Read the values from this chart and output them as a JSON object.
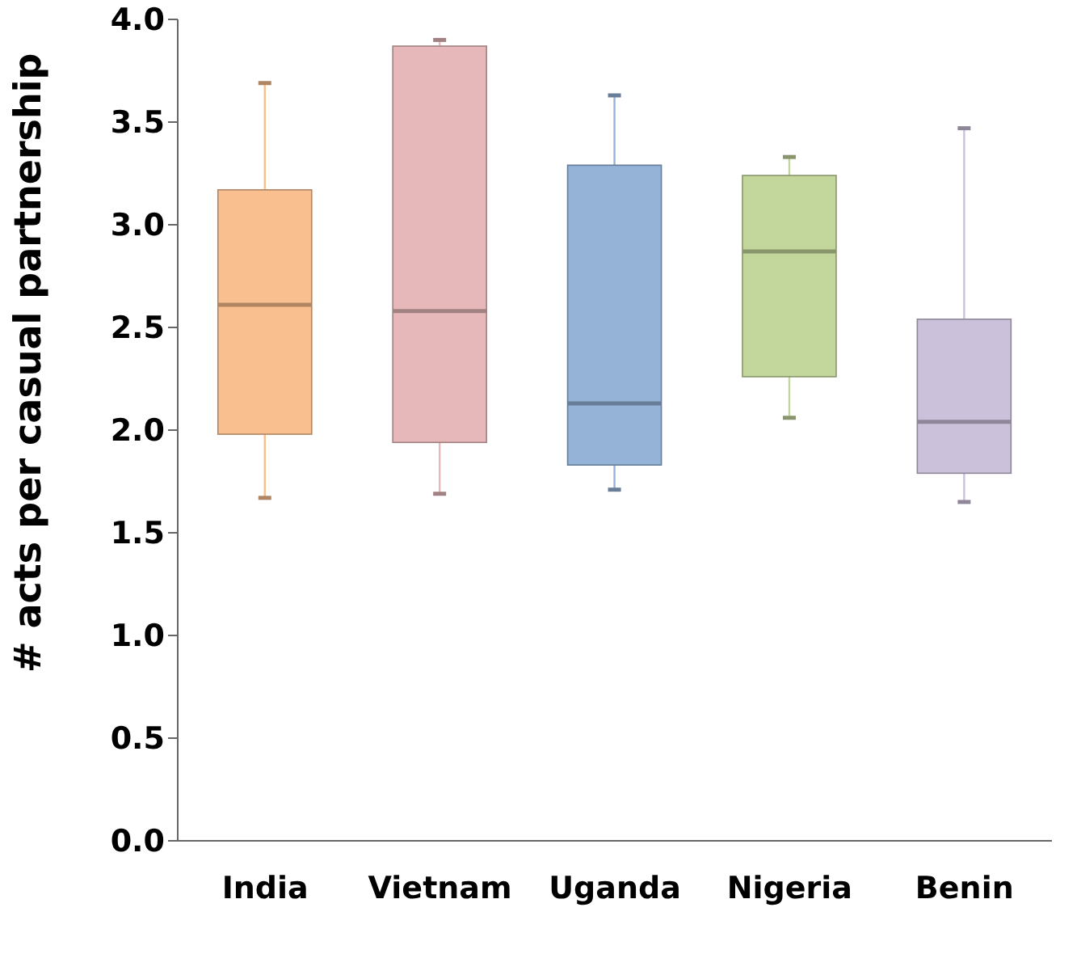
{
  "chart_data": {
    "type": "box",
    "ylabel": "# acts per casual partnership",
    "categories": [
      "India",
      "Vietnam",
      "Uganda",
      "Nigeria",
      "Benin"
    ],
    "boxes": [
      {
        "low": 1.67,
        "q1": 1.98,
        "median": 2.61,
        "q3": 3.17,
        "high": 3.69
      },
      {
        "low": 1.69,
        "q1": 1.94,
        "median": 2.58,
        "q3": 3.87,
        "high": 3.9
      },
      {
        "low": 1.71,
        "q1": 1.83,
        "median": 2.13,
        "q3": 3.29,
        "high": 3.63
      },
      {
        "low": 2.06,
        "q1": 2.26,
        "median": 2.87,
        "q3": 3.24,
        "high": 3.33
      },
      {
        "low": 1.65,
        "q1": 1.79,
        "median": 2.04,
        "q3": 2.54,
        "high": 3.47
      }
    ],
    "colors": [
      "#f9bf8f",
      "#e6b8b9",
      "#95b3d7",
      "#c3d69b",
      "#ccc1da"
    ],
    "ylim": [
      0,
      4
    ],
    "yticks": [
      {
        "value": 0,
        "label": "0.0"
      },
      0.5,
      {
        "value": 1,
        "label": "1.0"
      },
      1.5,
      {
        "value": 2,
        "label": "2.0"
      },
      2.5,
      {
        "value": 3,
        "label": "3.0"
      },
      3.5,
      {
        "value": 4,
        "label": "4.0"
      }
    ],
    "grid": false,
    "legend": false
  }
}
